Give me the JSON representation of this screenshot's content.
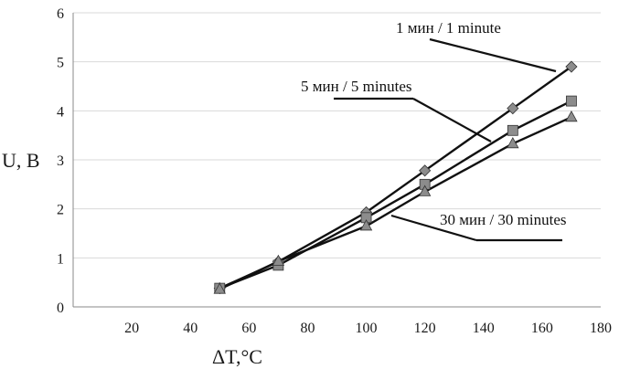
{
  "chart_data": {
    "type": "line",
    "xlabel": "ΔT,°C",
    "ylabel": "U, B",
    "xlim": [
      0,
      180
    ],
    "ylim": [
      0,
      6
    ],
    "x_ticks": [
      "20",
      "40",
      "60",
      "80",
      "100",
      "120",
      "140",
      "160",
      "180"
    ],
    "y_ticks": [
      "0",
      "1",
      "2",
      "3",
      "4",
      "5",
      "6"
    ],
    "grid": "horizontal",
    "series": [
      {
        "name": "1 мин / 1 minute",
        "marker": "diamond",
        "x": [
          50,
          70,
          100,
          120,
          150,
          170
        ],
        "y": [
          0.38,
          0.92,
          1.93,
          2.78,
          4.05,
          4.9
        ]
      },
      {
        "name": "5 мин / 5 minutes",
        "marker": "square",
        "x": [
          50,
          70,
          100,
          120,
          150,
          170
        ],
        "y": [
          0.38,
          0.85,
          1.82,
          2.5,
          3.6,
          4.2
        ]
      },
      {
        "name": "30 мин / 30 minutes",
        "marker": "triangle",
        "x": [
          50,
          70,
          100,
          120,
          150,
          170
        ],
        "y": [
          0.36,
          0.93,
          1.65,
          2.35,
          3.33,
          3.87
        ]
      }
    ],
    "annotations": [
      "1 мин / 1 minute",
      "5 мин / 5 minutes",
      "30 мин / 30 minutes"
    ],
    "colors": {
      "line": "#111111",
      "marker_fill": "#8c8c8c",
      "grid": "#d9d9d9",
      "axis": "#8a8a8a"
    }
  }
}
